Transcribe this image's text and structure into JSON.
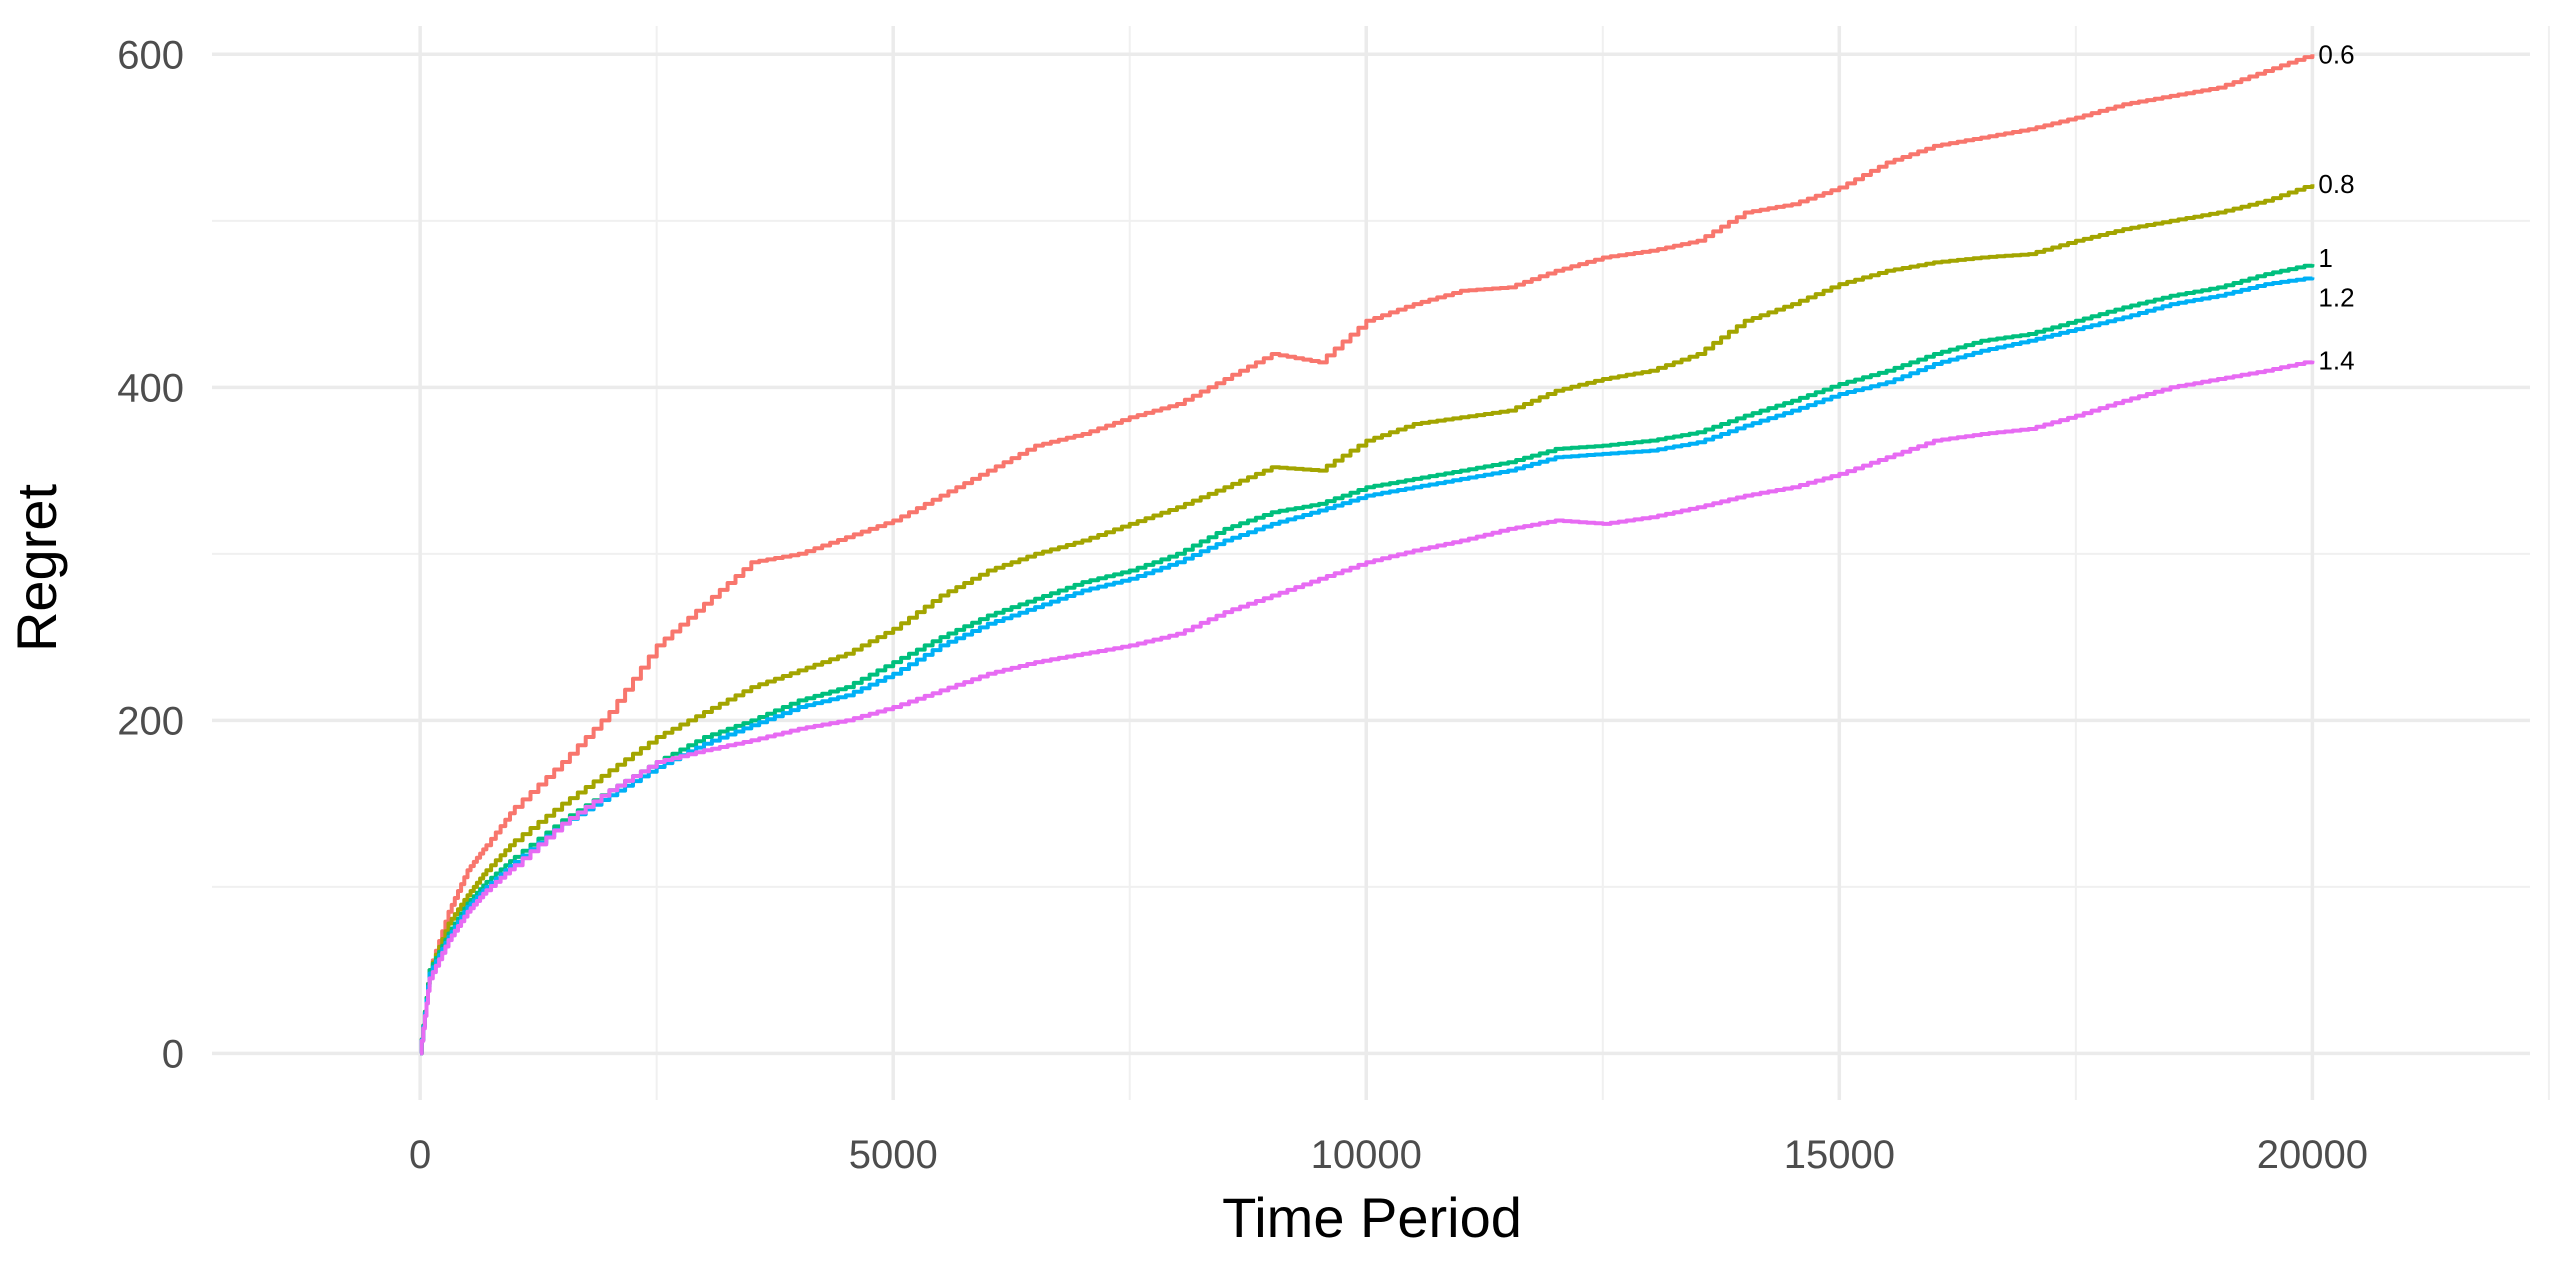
{
  "chart_data": {
    "type": "line",
    "xlabel": "Time Period",
    "ylabel": "Regret",
    "xlim": [
      -2200,
      22300
    ],
    "ylim": [
      -28,
      617
    ],
    "x_ticks": [
      0,
      5000,
      10000,
      15000,
      20000
    ],
    "x_tick_labels": [
      "0",
      "5000",
      "10000",
      "15000",
      "20000"
    ],
    "x_minor_ticks": [
      2500,
      7500,
      12500,
      17500,
      22500
    ],
    "y_ticks": [
      0,
      200,
      400,
      600
    ],
    "y_tick_labels": [
      "0",
      "200",
      "400",
      "600"
    ],
    "y_minor_ticks": [
      100,
      300,
      500
    ],
    "grid": true,
    "legend": "none (series labeled at line ends)",
    "series": [
      {
        "name": "0.6",
        "color": "#F8766D",
        "x": [
          0,
          100,
          300,
          500,
          700,
          1000,
          1500,
          2000,
          2500,
          3000,
          3500,
          4000,
          4500,
          5000,
          5500,
          6000,
          6500,
          7000,
          7500,
          8000,
          8500,
          9000,
          9500,
          10000,
          10500,
          11000,
          11500,
          12000,
          12500,
          13000,
          13500,
          14000,
          14500,
          15000,
          15500,
          16000,
          16500,
          17000,
          17500,
          18000,
          18500,
          19000,
          19500,
          20000
        ],
        "y": [
          0,
          50,
          85,
          110,
          125,
          148,
          175,
          205,
          245,
          270,
          295,
          300,
          310,
          320,
          335,
          350,
          365,
          372,
          382,
          390,
          405,
          420,
          415,
          440,
          450,
          458,
          460,
          470,
          478,
          482,
          488,
          505,
          510,
          520,
          535,
          545,
          550,
          555,
          562,
          570,
          575,
          580,
          590,
          600
        ]
      },
      {
        "name": "0.8",
        "color": "#A3A500",
        "x": [
          0,
          100,
          300,
          500,
          700,
          1000,
          1500,
          2000,
          2500,
          3000,
          3500,
          4000,
          4500,
          5000,
          5500,
          6000,
          6500,
          7000,
          7500,
          8000,
          8500,
          9000,
          9500,
          10000,
          10500,
          11000,
          11500,
          12000,
          12500,
          13000,
          13500,
          14000,
          14500,
          15000,
          15500,
          16000,
          16500,
          17000,
          17500,
          18000,
          18500,
          19000,
          19500,
          20000
        ],
        "y": [
          0,
          50,
          78,
          95,
          110,
          128,
          150,
          170,
          190,
          205,
          220,
          230,
          240,
          255,
          275,
          290,
          300,
          308,
          318,
          328,
          340,
          352,
          350,
          368,
          378,
          382,
          386,
          398,
          405,
          410,
          420,
          440,
          450,
          462,
          470,
          475,
          478,
          480,
          488,
          495,
          500,
          505,
          512,
          522
        ]
      },
      {
        "name": "1",
        "color": "#00BF7D",
        "x": [
          0,
          100,
          300,
          500,
          700,
          1000,
          1500,
          2000,
          2500,
          3000,
          3500,
          4000,
          4500,
          5000,
          5500,
          6000,
          6500,
          7000,
          7500,
          8000,
          8500,
          9000,
          9500,
          10000,
          10500,
          11000,
          11500,
          12000,
          12500,
          13000,
          13500,
          14000,
          14500,
          15000,
          15500,
          16000,
          16500,
          17000,
          17500,
          18000,
          18500,
          19000,
          19500,
          20000
        ],
        "y": [
          0,
          50,
          72,
          90,
          103,
          118,
          140,
          158,
          175,
          190,
          200,
          212,
          220,
          235,
          250,
          263,
          273,
          283,
          290,
          300,
          315,
          325,
          330,
          340,
          345,
          350,
          355,
          363,
          365,
          368,
          373,
          383,
          392,
          402,
          410,
          420,
          428,
          432,
          440,
          448,
          455,
          460,
          468,
          474
        ]
      },
      {
        "name": "1.2",
        "color": "#00B0F6",
        "x": [
          0,
          100,
          300,
          500,
          700,
          1000,
          1500,
          2000,
          2500,
          3000,
          3500,
          4000,
          4500,
          5000,
          5500,
          6000,
          6500,
          7000,
          7500,
          8000,
          8500,
          9000,
          9500,
          10000,
          10500,
          11000,
          11500,
          12000,
          12500,
          13000,
          13500,
          14000,
          14500,
          15000,
          15500,
          16000,
          16500,
          17000,
          17500,
          18000,
          18500,
          19000,
          19500,
          20000
        ],
        "y": [
          0,
          48,
          70,
          88,
          100,
          115,
          138,
          155,
          172,
          186,
          197,
          208,
          215,
          228,
          245,
          258,
          268,
          278,
          285,
          295,
          308,
          318,
          326,
          335,
          340,
          345,
          350,
          358,
          360,
          362,
          367,
          377,
          386,
          396,
          403,
          414,
          422,
          428,
          435,
          442,
          450,
          455,
          462,
          466
        ]
      },
      {
        "name": "1.4",
        "color": "#E76BF3",
        "x": [
          0,
          100,
          300,
          500,
          700,
          1000,
          1500,
          2000,
          2500,
          3000,
          3500,
          4000,
          4500,
          5000,
          5500,
          6000,
          6500,
          7000,
          7500,
          8000,
          8500,
          9000,
          9500,
          10000,
          10500,
          11000,
          11500,
          12000,
          12500,
          13000,
          13500,
          14000,
          14500,
          15000,
          15500,
          16000,
          16500,
          17000,
          17500,
          18000,
          18500,
          19000,
          19500,
          20000
        ],
        "y": [
          0,
          45,
          68,
          85,
          98,
          113,
          138,
          158,
          175,
          182,
          188,
          195,
          200,
          208,
          218,
          228,
          235,
          240,
          245,
          252,
          265,
          275,
          285,
          295,
          302,
          308,
          315,
          320,
          318,
          322,
          328,
          335,
          340,
          348,
          358,
          368,
          372,
          375,
          383,
          392,
          400,
          405,
          410,
          416
        ]
      }
    ]
  }
}
